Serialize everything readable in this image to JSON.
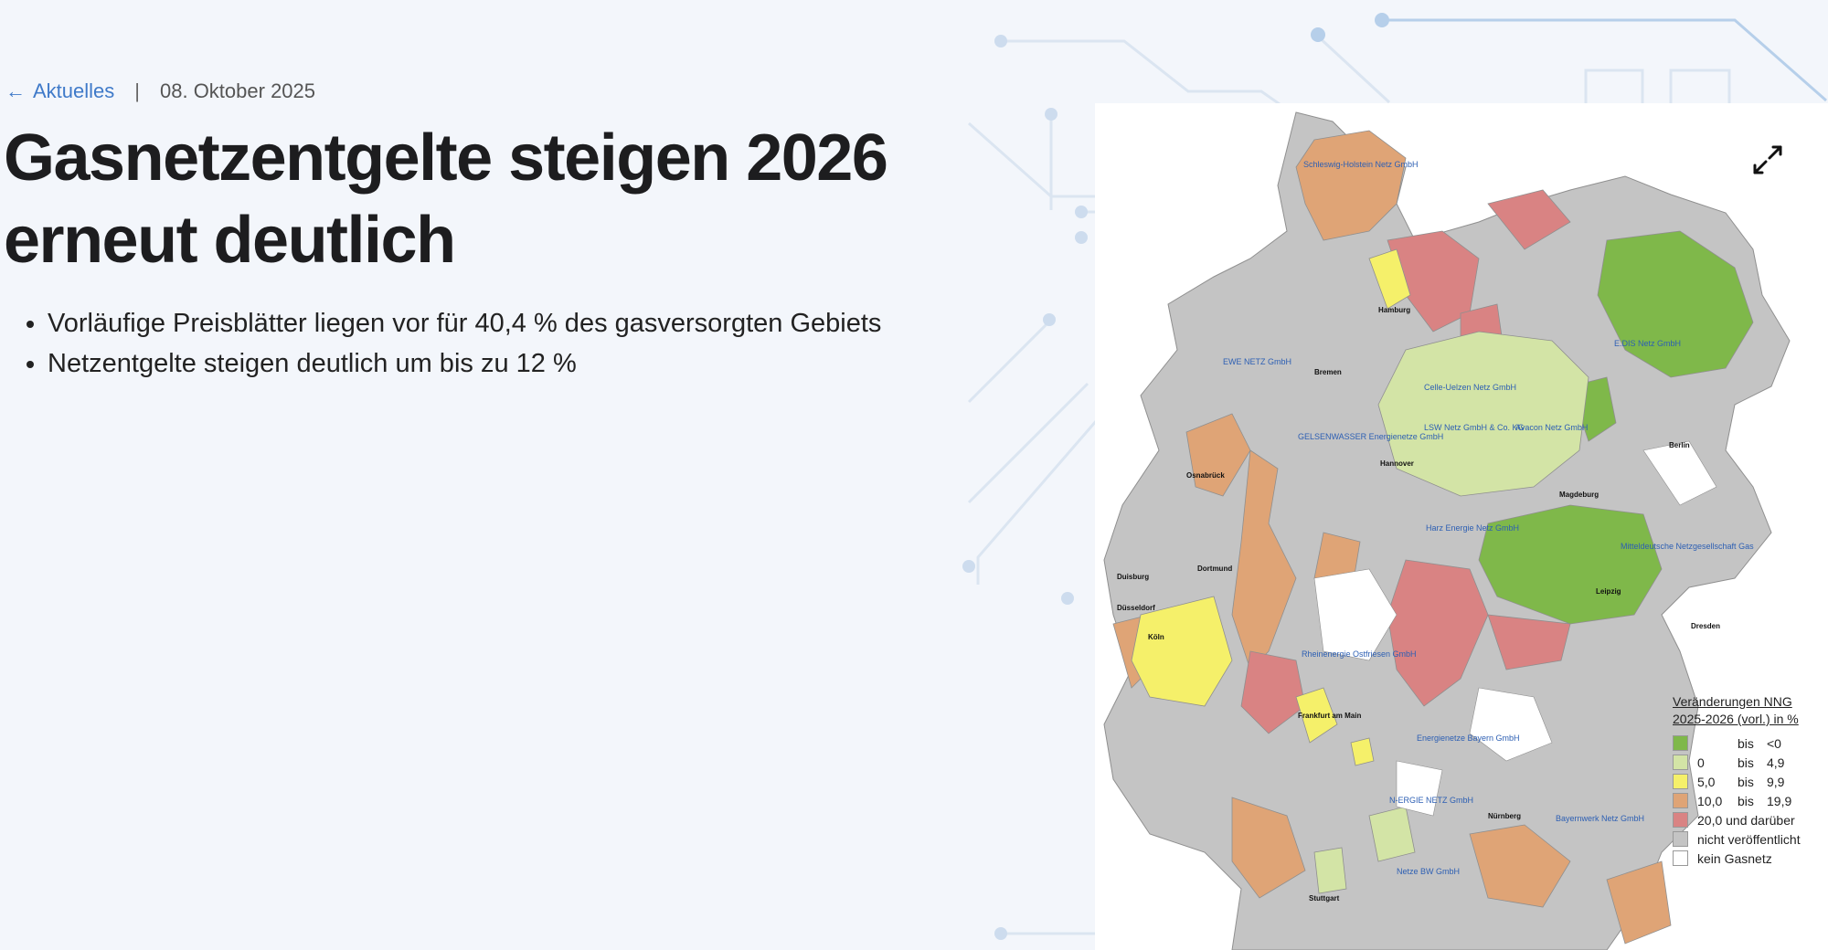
{
  "breadcrumb": {
    "back_label": "Aktuelles",
    "separator": "|",
    "date": "08. Oktober 2025"
  },
  "headline": "Gasnetzentgelte steigen 2026 erneut deutlich",
  "bullets": [
    "Vorläufige Preisblätter liegen vor für 40,4 % des gasversorgten Gebiets",
    "Netzentgelte steigen deutlich um bis zu 12 %"
  ],
  "icons": {
    "back": "arrow-left-icon",
    "expand": "expand-icon"
  },
  "colors": {
    "link": "#3f7ac9",
    "background": "#f3f6fb",
    "green": "#7fb84a",
    "light_green": "#d3e4a6",
    "yellow": "#f5f06a",
    "orange": "#dfa476",
    "red": "#d98383",
    "grey": "#c4c4c4",
    "white": "#ffffff"
  },
  "map": {
    "legend": {
      "title_line1": "Veränderungen NNG",
      "title_line2": "2025-2026 (vorl.) in %",
      "items": [
        {
          "from": "",
          "bis": "bis",
          "to": "<0",
          "color": "#7fb84a"
        },
        {
          "from": "0",
          "bis": "bis",
          "to": "4,9",
          "color": "#d3e4a6"
        },
        {
          "from": "5,0",
          "bis": "bis",
          "to": "9,9",
          "color": "#f5f06a"
        },
        {
          "from": "10,0",
          "bis": "bis",
          "to": "19,9",
          "color": "#dfa476"
        },
        {
          "from": "20,0 und darüber",
          "bis": "",
          "to": "",
          "color": "#d98383"
        },
        {
          "from": "nicht veröffentlicht",
          "bis": "",
          "to": "",
          "color": "#c4c4c4"
        },
        {
          "from": "kein Gasnetz",
          "bis": "",
          "to": "",
          "color": "#ffffff"
        }
      ]
    },
    "operator_labels": [
      "Schleswig-Holstein Netz GmbH",
      "E.DIS Netz GmbH",
      "EWE NETZ GmbH",
      "Celle-Uelzen Netz GmbH",
      "LSW Netz GmbH & Co. KG",
      "Avacon Netz GmbH",
      "GELSENWASSER Energienetze GmbH",
      "Harz Energie Netz GmbH",
      "Mitteldeutsche Netzgesellschaft Gas",
      "Rheinenergie Ostfriesen GmbH",
      "Energienetze Bayern GmbH",
      "N-ERGIE NETZ GmbH",
      "Bayernwerk Netz GmbH",
      "Netze BW GmbH"
    ],
    "city_labels": [
      "Hamburg",
      "Bremen",
      "Hannover",
      "Berlin",
      "Magdeburg",
      "Osnabrück",
      "Duisburg",
      "Düsseldorf",
      "Dortmund",
      "Köln",
      "Leipzig",
      "Dresden",
      "Frankfurt am Main",
      "Nürnberg",
      "Stuttgart"
    ]
  }
}
